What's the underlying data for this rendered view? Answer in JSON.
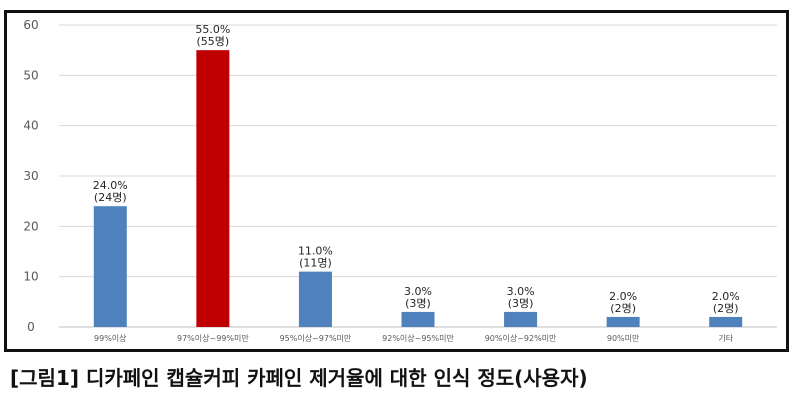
{
  "caption": "[그림1] 디카페인 캡슐커피 카페인 제거율에 대한 인식 정도(사용자)",
  "chart_data": {
    "type": "bar",
    "categories": [
      "99%이상",
      "97%이상~99%미만",
      "95%이상~97%미만",
      "92%이상~95%미만",
      "90%이상~92%미만",
      "90%미만",
      "기타"
    ],
    "values": [
      24,
      55,
      11,
      3,
      3,
      2,
      2
    ],
    "data_labels": [
      [
        "24.0%",
        "(24명)"
      ],
      [
        "55.0%",
        "(55명)"
      ],
      [
        "11.0%",
        "(11명)"
      ],
      [
        "3.0%",
        "(3명)"
      ],
      [
        "3.0%",
        "(3명)"
      ],
      [
        "2.0%",
        "(2명)"
      ],
      [
        "2.0%",
        "(2명)"
      ]
    ],
    "highlight_index": 1,
    "colors": {
      "bar": "#4f81bd",
      "highlight": "#c00000",
      "grid": "#d9d9d9"
    },
    "ylim": [
      0,
      60
    ],
    "yticks": [
      0,
      10,
      20,
      30,
      40,
      50,
      60
    ],
    "grid": true,
    "title": "",
    "xlabel": "",
    "ylabel": ""
  }
}
